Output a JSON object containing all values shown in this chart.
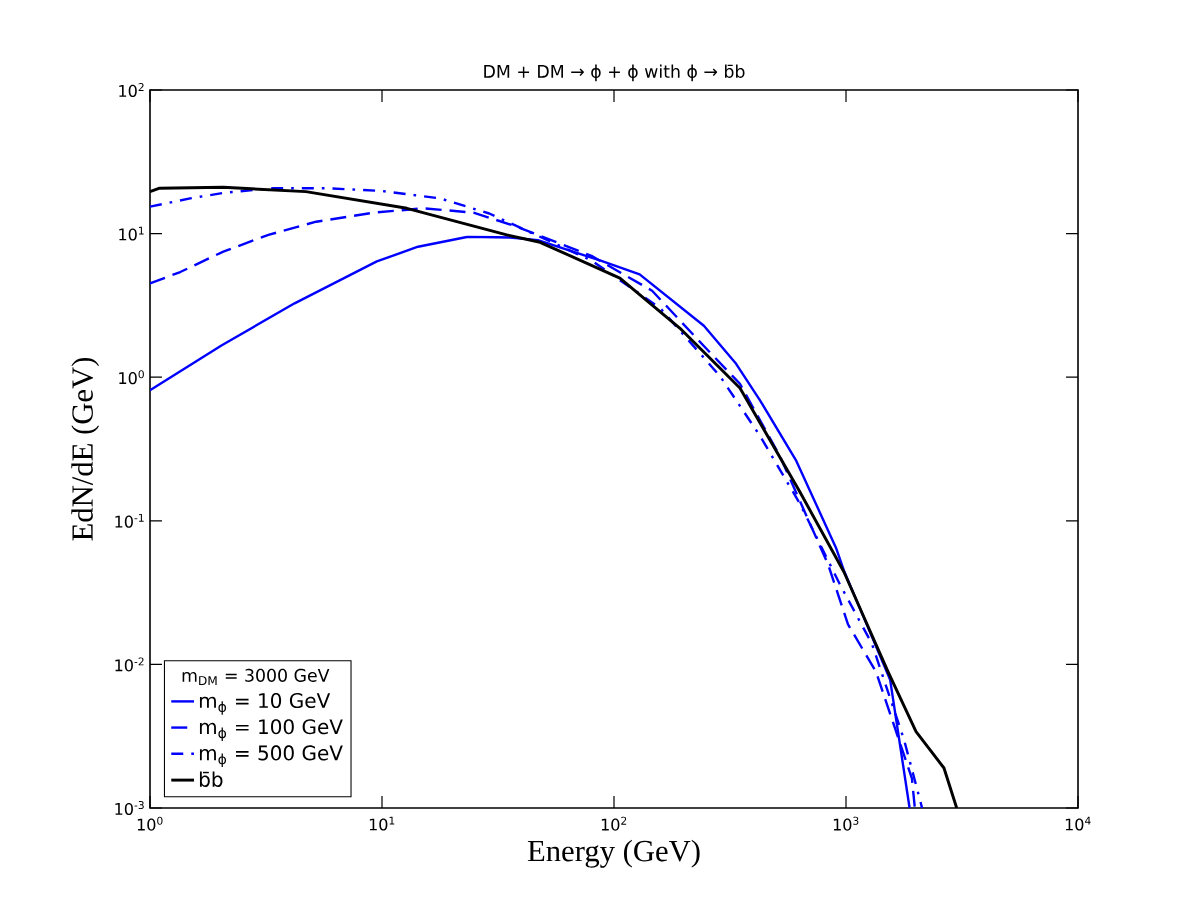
{
  "chart_data": {
    "type": "line",
    "title": "DM + DM → ϕ + ϕ with ϕ → b̄b",
    "xlabel": "Energy (GeV)",
    "ylabel": "EdN/dE (GeV)",
    "legend_title": "m$_{DM}$ = 3000 GeV",
    "log": "xy",
    "grid": false,
    "legend": "bottom left",
    "xlim": [
      1,
      10000
    ],
    "ylim": [
      0.001,
      100
    ],
    "xticks": [
      {
        "value": 1,
        "label": "10$^{0}$"
      },
      {
        "value": 10,
        "label": "10$^{1}$"
      },
      {
        "value": 100,
        "label": "10$^{2}$"
      },
      {
        "value": 1000,
        "label": "10$^{3}$"
      },
      {
        "value": 10000,
        "label": "10$^{4}$"
      }
    ],
    "yticks": [
      {
        "value": 0.001,
        "label": "10$^{-3}$"
      },
      {
        "value": 0.01,
        "label": "10$^{-2}$"
      },
      {
        "value": 0.1,
        "label": "10$^{-1}$"
      },
      {
        "value": 1,
        "label": "10$^{0}$"
      },
      {
        "value": 10,
        "label": "10$^{1}$"
      },
      {
        "value": 100,
        "label": "10$^{2}$"
      }
    ],
    "series": [
      {
        "name": "m$_{ϕ}$ = 10 GeV",
        "color": "#0000ff",
        "line_style": "solid",
        "x": [
          1,
          2.04,
          4.2,
          9.5,
          14.3,
          23.5,
          35.6,
          47,
          87,
          129,
          244,
          336,
          426,
          608,
          905,
          980,
          1550,
          1880
        ],
        "values": [
          0.81,
          1.67,
          3.27,
          6.4,
          8.1,
          9.5,
          9.4,
          9.0,
          6.5,
          5.2,
          2.28,
          1.24,
          0.69,
          0.265,
          0.065,
          0.045,
          0.0078,
          0.001
        ]
      },
      {
        "name": "m$_{ϕ}$ = 100 GeV",
        "color": "#0000ff",
        "line_style": "dashed",
        "x": [
          1,
          1.35,
          2.07,
          3.24,
          5.2,
          9.2,
          15.1,
          24.8,
          38,
          80,
          146,
          244,
          349,
          520,
          836,
          1020,
          1346,
          1925,
          1980
        ],
        "values": [
          4.5,
          5.4,
          7.5,
          9.8,
          12.1,
          14.0,
          15.0,
          14.0,
          11.2,
          7.0,
          4.0,
          1.65,
          0.9,
          0.28,
          0.05,
          0.019,
          0.0089,
          0.0016,
          0.001
        ]
      },
      {
        "name": "m$_{ϕ}$ = 500 GeV",
        "color": "#0000ff",
        "line_style": "dashdot",
        "x": [
          1,
          1.49,
          2.07,
          3.4,
          5.8,
          10,
          17.8,
          29,
          80,
          158,
          286,
          426,
          634,
          942,
          1294,
          1778,
          2084,
          2127
        ],
        "values": [
          15.4,
          17.6,
          19.2,
          20.7,
          20.7,
          19.8,
          17.6,
          13.8,
          6.5,
          3.03,
          1.02,
          0.39,
          0.131,
          0.036,
          0.0139,
          0.003,
          0.00114,
          0.001
        ]
      },
      {
        "name": "b̄b",
        "color": "#000000",
        "line_style": "solid",
        "x": [
          1,
          1.1,
          2.07,
          4.7,
          12.8,
          34.5,
          48,
          106,
          192,
          349,
          634,
          980,
          1517,
          2004,
          2644,
          3000
        ],
        "values": [
          19.6,
          20.7,
          21.0,
          19.6,
          15.0,
          9.8,
          8.7,
          4.9,
          2.2,
          0.84,
          0.158,
          0.044,
          0.0089,
          0.0034,
          0.0019,
          0.001
        ]
      }
    ]
  }
}
